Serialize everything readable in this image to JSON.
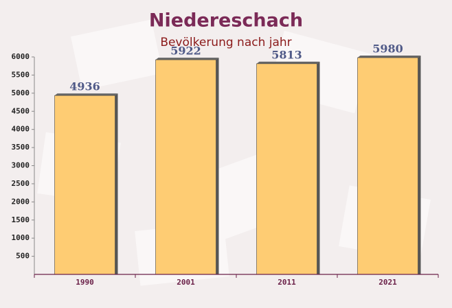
{
  "chart_data": {
    "type": "bar",
    "title": "Niedereschach",
    "subtitle": "Bevölkerung nach jahr",
    "categories": [
      "1990",
      "2001",
      "2011",
      "2021"
    ],
    "values": [
      4936,
      5922,
      5813,
      5980
    ],
    "color": "#fec96b",
    "ylim": [
      0,
      6000
    ],
    "yticks": [
      500,
      1000,
      1500,
      2000,
      2500,
      3000,
      3500,
      4000,
      4500,
      5000,
      5500,
      6000
    ]
  }
}
